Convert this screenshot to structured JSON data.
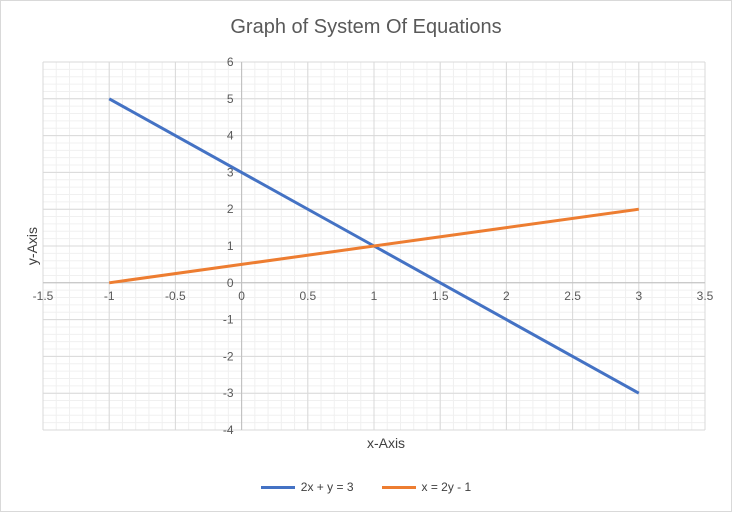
{
  "chart_data": {
    "type": "line",
    "title": "Graph of System Of Equations",
    "xlabel": "x-Axis",
    "ylabel": "y-Axis",
    "xlim": [
      -1.5,
      3.5
    ],
    "ylim": [
      -4,
      6
    ],
    "x_ticks": [
      -1.5,
      -1,
      -0.5,
      0,
      0.5,
      1,
      1.5,
      2,
      2.5,
      3,
      3.5
    ],
    "y_ticks": [
      -4,
      -3,
      -2,
      -1,
      0,
      1,
      2,
      3,
      4,
      5,
      6
    ],
    "grid": true,
    "legend_position": "bottom",
    "series": [
      {
        "name": "2x + y = 3",
        "color": "#4472c4",
        "points": [
          [
            -1,
            5
          ],
          [
            0,
            3
          ],
          [
            1,
            1
          ],
          [
            1.5,
            0
          ],
          [
            2,
            -1
          ],
          [
            3,
            -3
          ]
        ]
      },
      {
        "name": "x = 2y - 1",
        "color": "#ed7d31",
        "points": [
          [
            -1,
            0
          ],
          [
            0,
            0.5
          ],
          [
            1,
            1
          ],
          [
            2,
            1.5
          ],
          [
            3,
            2
          ]
        ]
      }
    ]
  }
}
